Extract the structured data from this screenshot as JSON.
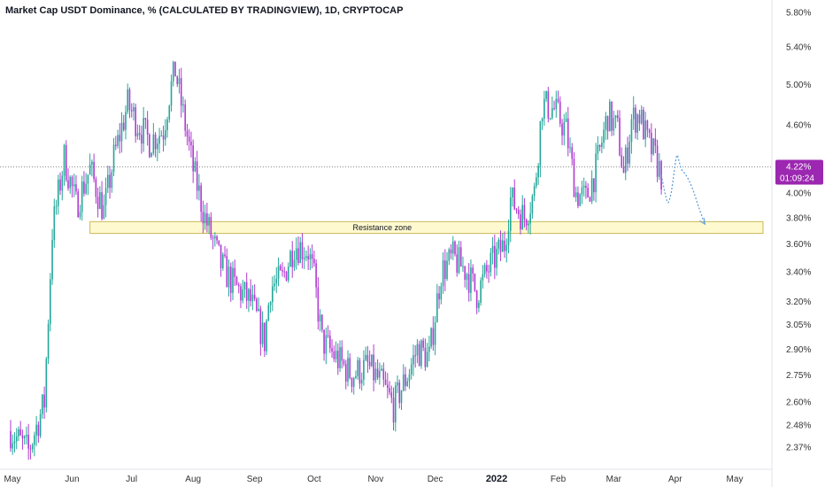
{
  "title": "Market Cap USDT Dominance, % (CALCULATED BY TRADINGVIEW), 1D, CRYPTOCAP",
  "price_badge": {
    "value": "4.22%",
    "countdown": "01:09:24",
    "color": "#9c27b0"
  },
  "resistance_label": "Resistance zone",
  "colors": {
    "up": "#26a69a",
    "down": "#b23bd1",
    "zone_fill": "#fff9cf",
    "zone_stroke": "#c9b95a",
    "projection": "#5a9bd5"
  },
  "chart_data": {
    "type": "candlestick",
    "y_scale": "log",
    "y_ticks": [
      "5.80%",
      "5.40%",
      "5.00%",
      "4.60%",
      "4.20%",
      "4.00%",
      "3.80%",
      "3.60%",
      "3.40%",
      "3.20%",
      "3.05%",
      "2.90%",
      "2.75%",
      "2.60%",
      "2.48%",
      "2.37%"
    ],
    "x_ticks": [
      "May",
      "Jun",
      "Jul",
      "Aug",
      "Sep",
      "Oct",
      "Nov",
      "Dec",
      "2022",
      "Feb",
      "Mar",
      "Apr",
      "May"
    ],
    "current_value": 4.22,
    "resistance_zone": [
      3.68,
      3.77
    ],
    "close_path": [
      {
        "d": "2021-05-01",
        "v": 2.45
      },
      {
        "d": "2021-05-10",
        "v": 2.35
      },
      {
        "d": "2021-05-18",
        "v": 2.6
      },
      {
        "d": "2021-05-22",
        "v": 3.7
      },
      {
        "d": "2021-05-28",
        "v": 4.3
      },
      {
        "d": "2021-06-03",
        "v": 3.9
      },
      {
        "d": "2021-06-10",
        "v": 4.2
      },
      {
        "d": "2021-06-17",
        "v": 3.85
      },
      {
        "d": "2021-06-22",
        "v": 4.3
      },
      {
        "d": "2021-06-29",
        "v": 4.8
      },
      {
        "d": "2021-07-03",
        "v": 4.65
      },
      {
        "d": "2021-07-10",
        "v": 4.45
      },
      {
        "d": "2021-07-17",
        "v": 4.55
      },
      {
        "d": "2021-07-20",
        "v": 4.9
      },
      {
        "d": "2021-07-23",
        "v": 5.15
      },
      {
        "d": "2021-07-27",
        "v": 4.7
      },
      {
        "d": "2021-08-01",
        "v": 4.2
      },
      {
        "d": "2021-08-07",
        "v": 3.8
      },
      {
        "d": "2021-08-15",
        "v": 3.45
      },
      {
        "d": "2021-08-22",
        "v": 3.3
      },
      {
        "d": "2021-08-30",
        "v": 3.2
      },
      {
        "d": "2021-09-06",
        "v": 2.95
      },
      {
        "d": "2021-09-09",
        "v": 3.3
      },
      {
        "d": "2021-09-15",
        "v": 3.35
      },
      {
        "d": "2021-09-21",
        "v": 3.6
      },
      {
        "d": "2021-09-28",
        "v": 3.55
      },
      {
        "d": "2021-10-01",
        "v": 3.35
      },
      {
        "d": "2021-10-05",
        "v": 2.95
      },
      {
        "d": "2021-10-12",
        "v": 2.85
      },
      {
        "d": "2021-10-20",
        "v": 2.75
      },
      {
        "d": "2021-10-28",
        "v": 2.8
      },
      {
        "d": "2021-11-04",
        "v": 2.7
      },
      {
        "d": "2021-11-10",
        "v": 2.58
      },
      {
        "d": "2021-11-17",
        "v": 2.75
      },
      {
        "d": "2021-11-22",
        "v": 2.9
      },
      {
        "d": "2021-11-28",
        "v": 2.85
      },
      {
        "d": "2021-12-04",
        "v": 3.4
      },
      {
        "d": "2021-12-10",
        "v": 3.5
      },
      {
        "d": "2021-12-17",
        "v": 3.4
      },
      {
        "d": "2021-12-22",
        "v": 3.25
      },
      {
        "d": "2021-12-29",
        "v": 3.45
      },
      {
        "d": "2022-01-05",
        "v": 3.6
      },
      {
        "d": "2022-01-08",
        "v": 3.95
      },
      {
        "d": "2022-01-15",
        "v": 3.8
      },
      {
        "d": "2022-01-20",
        "v": 4.0
      },
      {
        "d": "2022-01-24",
        "v": 4.8
      },
      {
        "d": "2022-01-30",
        "v": 4.75
      },
      {
        "d": "2022-02-05",
        "v": 4.55
      },
      {
        "d": "2022-02-10",
        "v": 4.0
      },
      {
        "d": "2022-02-15",
        "v": 3.95
      },
      {
        "d": "2022-02-20",
        "v": 4.2
      },
      {
        "d": "2022-02-26",
        "v": 4.7
      },
      {
        "d": "2022-03-03",
        "v": 4.55
      },
      {
        "d": "2022-03-06",
        "v": 4.15
      },
      {
        "d": "2022-03-10",
        "v": 4.65
      },
      {
        "d": "2022-03-14",
        "v": 4.7
      },
      {
        "d": "2022-03-18",
        "v": 4.45
      },
      {
        "d": "2022-03-22",
        "v": 4.3
      },
      {
        "d": "2022-03-25",
        "v": 4.15
      }
    ],
    "projection": [
      {
        "d": "2022-03-25",
        "v": 4.15
      },
      {
        "d": "2022-03-30",
        "v": 4.0
      },
      {
        "d": "2022-04-04",
        "v": 4.2
      },
      {
        "d": "2022-04-08",
        "v": 4.1
      },
      {
        "d": "2022-04-16",
        "v": 3.75
      }
    ]
  }
}
